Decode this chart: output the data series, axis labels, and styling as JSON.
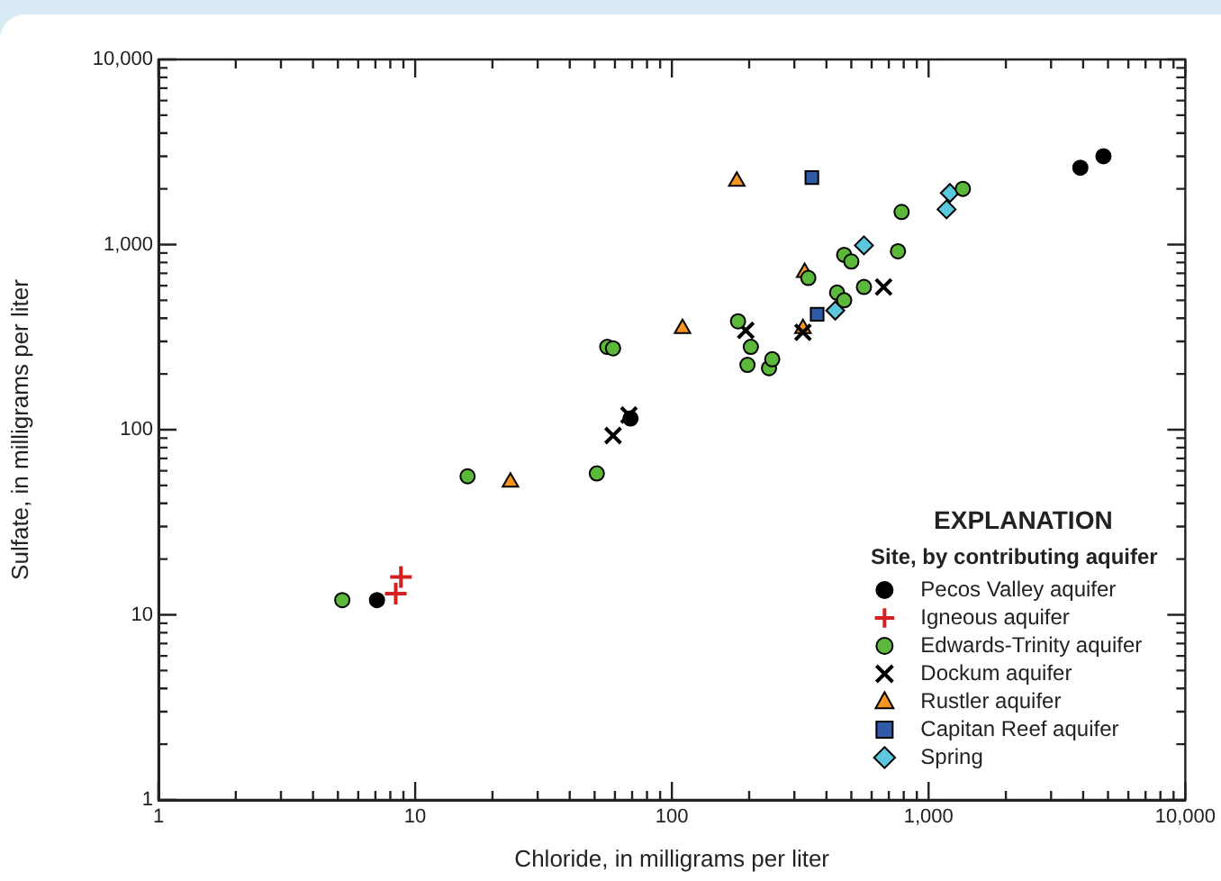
{
  "chart_data": {
    "type": "scatter",
    "xlabel": "Chloride, in milligrams per liter",
    "ylabel": "Sulfate, in milligrams per liter",
    "legend_title": "Site, by contributing aquifer",
    "annotations": [
      "EXPLANATION"
    ],
    "log": "xy",
    "grid": false,
    "legend": "bottom right",
    "xlim": [
      1,
      10000
    ],
    "ylim": [
      1,
      10000
    ],
    "xticks": [
      1,
      {
        "value": 2,
        "label": null
      },
      {
        "value": 3,
        "label": null
      },
      {
        "value": 4,
        "label": null
      },
      {
        "value": 5,
        "label": null
      },
      {
        "value": 6,
        "label": null
      },
      {
        "value": 7,
        "label": null
      },
      {
        "value": 8,
        "label": null
      },
      {
        "value": 9,
        "label": null
      },
      10,
      {
        "value": 20,
        "label": null
      },
      {
        "value": 30,
        "label": null
      },
      {
        "value": 40,
        "label": null
      },
      {
        "value": 50,
        "label": null
      },
      {
        "value": 60,
        "label": null
      },
      {
        "value": 70,
        "label": null
      },
      {
        "value": 80,
        "label": null
      },
      {
        "value": 90,
        "label": null
      },
      100,
      {
        "value": 200,
        "label": null
      },
      {
        "value": 300,
        "label": null
      },
      {
        "value": 400,
        "label": null
      },
      {
        "value": 500,
        "label": null
      },
      {
        "value": 600,
        "label": null
      },
      {
        "value": 700,
        "label": null
      },
      {
        "value": 800,
        "label": null
      },
      {
        "value": 900,
        "label": null
      },
      {
        "value": 1000,
        "label": "1,000"
      },
      {
        "value": 2000,
        "label": null
      },
      {
        "value": 3000,
        "label": null
      },
      {
        "value": 4000,
        "label": null
      },
      {
        "value": 5000,
        "label": null
      },
      {
        "value": 6000,
        "label": null
      },
      {
        "value": 7000,
        "label": null
      },
      {
        "value": 8000,
        "label": null
      },
      {
        "value": 9000,
        "label": null
      },
      {
        "value": 10000,
        "label": "10,000"
      }
    ],
    "yticks": [
      1,
      {
        "value": 2,
        "label": null
      },
      {
        "value": 3,
        "label": null
      },
      {
        "value": 4,
        "label": null
      },
      {
        "value": 5,
        "label": null
      },
      {
        "value": 6,
        "label": null
      },
      {
        "value": 7,
        "label": null
      },
      {
        "value": 8,
        "label": null
      },
      {
        "value": 9,
        "label": null
      },
      10,
      {
        "value": 20,
        "label": null
      },
      {
        "value": 30,
        "label": null
      },
      {
        "value": 40,
        "label": null
      },
      {
        "value": 50,
        "label": null
      },
      {
        "value": 60,
        "label": null
      },
      {
        "value": 70,
        "label": null
      },
      {
        "value": 80,
        "label": null
      },
      {
        "value": 90,
        "label": null
      },
      100,
      {
        "value": 200,
        "label": null
      },
      {
        "value": 300,
        "label": null
      },
      {
        "value": 400,
        "label": null
      },
      {
        "value": 500,
        "label": null
      },
      {
        "value": 600,
        "label": null
      },
      {
        "value": 700,
        "label": null
      },
      {
        "value": 800,
        "label": null
      },
      {
        "value": 900,
        "label": null
      },
      {
        "value": 1000,
        "label": "1,000"
      },
      {
        "value": 2000,
        "label": null
      },
      {
        "value": 3000,
        "label": null
      },
      {
        "value": 4000,
        "label": null
      },
      {
        "value": 5000,
        "label": null
      },
      {
        "value": 6000,
        "label": null
      },
      {
        "value": 7000,
        "label": null
      },
      {
        "value": 8000,
        "label": null
      },
      {
        "value": 9000,
        "label": null
      },
      {
        "value": 10000,
        "label": "10,000"
      }
    ],
    "series": [
      {
        "name": "Pecos Valley aquifer",
        "color": "#000000",
        "marker": "circle",
        "x": [
          7.1,
          69,
          3900,
          4800
        ],
        "values": [
          12,
          115,
          2600,
          3000
        ]
      },
      {
        "name": "Igneous aquifer",
        "color": "#d42020",
        "marker": "cross",
        "x": [
          8.8,
          8.4
        ],
        "values": [
          16,
          13
        ]
      },
      {
        "name": "Edwards-Trinity aquifer",
        "color": "#5cb83a",
        "marker": "circle",
        "x": [
          5.2,
          16,
          51,
          56,
          59,
          181,
          203,
          197,
          239,
          246,
          340,
          440,
          469,
          469,
          500,
          560,
          785,
          760,
          1360
        ],
        "values": [
          12,
          56,
          58,
          280,
          275,
          385,
          280,
          224,
          215,
          240,
          660,
          550,
          500,
          880,
          810,
          590,
          1500,
          920,
          2000
        ]
      },
      {
        "name": "Dockum aquifer",
        "color": "#000000",
        "marker": "cross",
        "x": [
          68,
          59,
          194,
          324,
          668
        ],
        "values": [
          120,
          93,
          344,
          336,
          590
        ]
      },
      {
        "name": "Rustler aquifer",
        "color": "#f7941d",
        "marker": "triangle",
        "x": [
          23.5,
          110,
          179,
          329,
          324
        ],
        "values": [
          52,
          352,
          2200,
          706,
          352
        ]
      },
      {
        "name": "Capitan Reef aquifer",
        "color": "#2f5aa8",
        "marker": "square",
        "x": [
          351,
          368
        ],
        "values": [
          2300,
          420
        ]
      },
      {
        "name": "Spring",
        "color": "#5bc8e0",
        "marker": "diamond",
        "x": [
          560,
          433,
          1210,
          1175
        ],
        "values": [
          990,
          440,
          1900,
          1550
        ]
      }
    ]
  }
}
